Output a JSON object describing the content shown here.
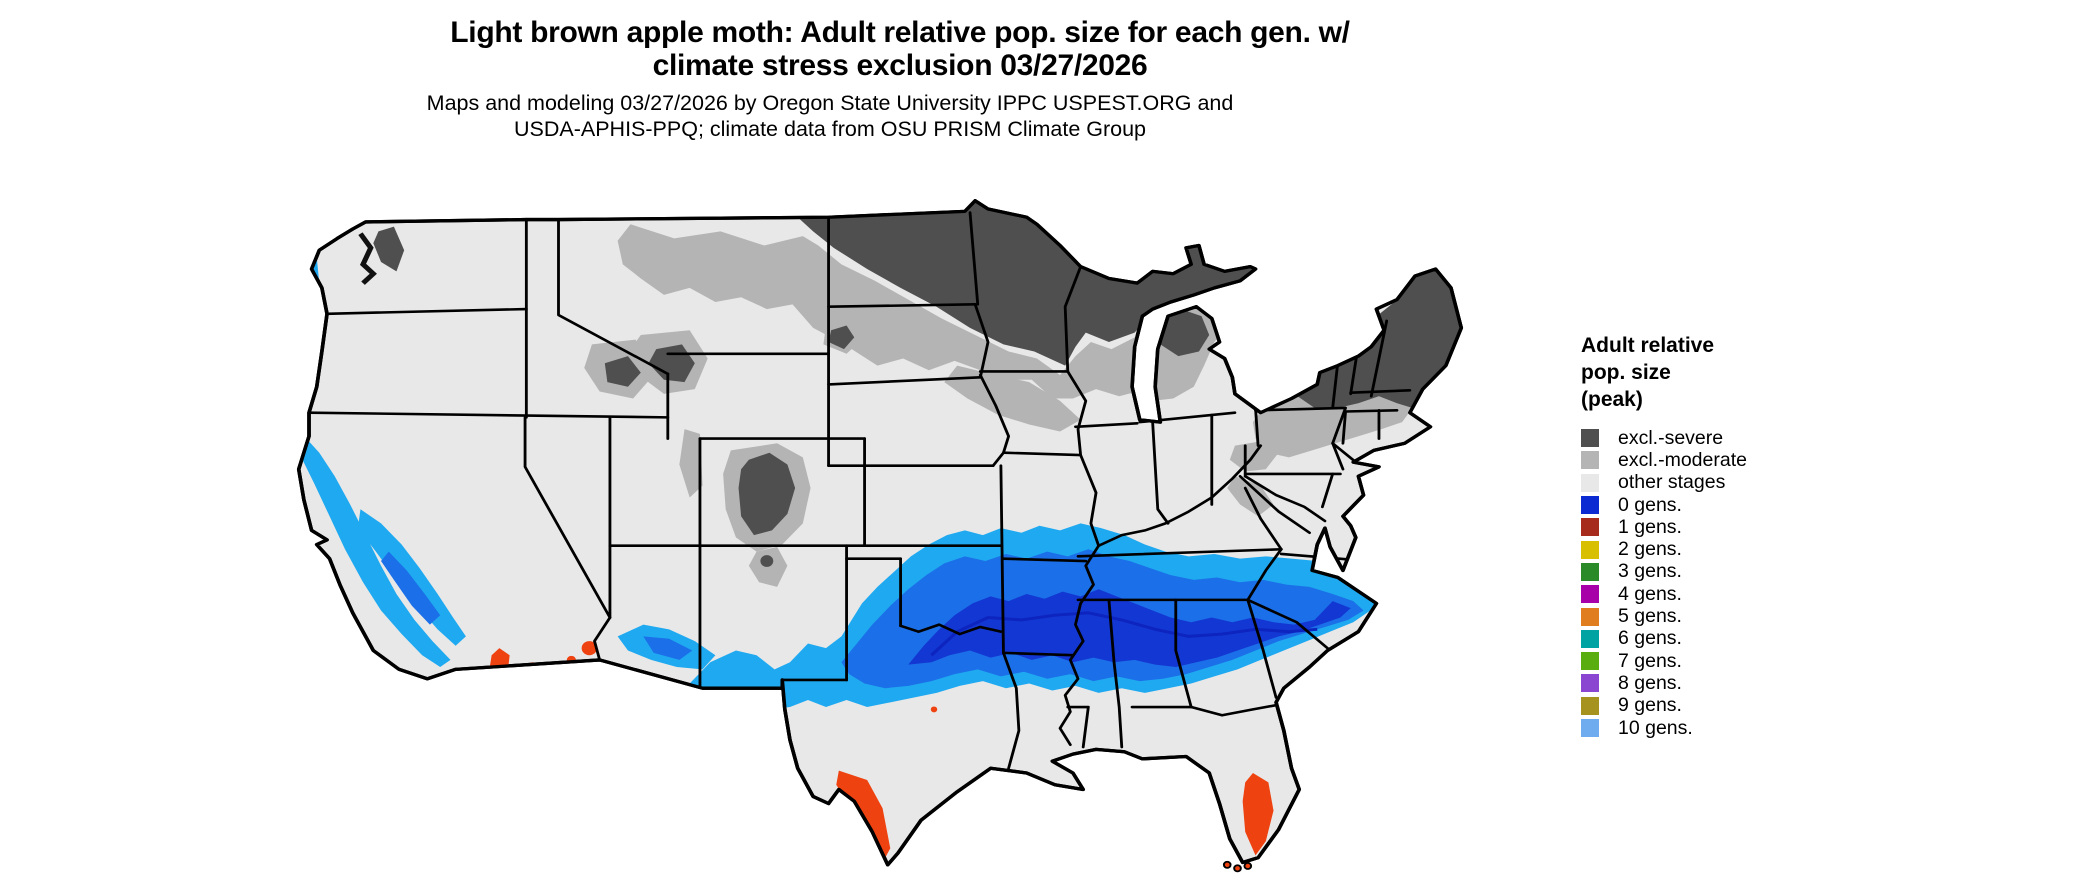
{
  "title": {
    "line1": "Light brown apple moth: Adult relative pop. size for each gen. w/",
    "line2": "climate stress exclusion 03/27/2026"
  },
  "subtitle": {
    "line1": "Maps and modeling 03/27/2026 by Oregon State University IPPC USPEST.ORG and",
    "line2": "USDA-APHIS-PPQ; climate data from OSU PRISM Climate Group"
  },
  "legend": {
    "title_lines": [
      "Adult relative",
      "pop. size",
      "(peak)"
    ],
    "items": [
      {
        "label": "excl.-severe",
        "color": "#4f4f4f"
      },
      {
        "label": "excl.-moderate",
        "color": "#b4b4b4"
      },
      {
        "label": "other stages",
        "color": "#e8e8e8"
      },
      {
        "label": "0 gens.",
        "color": "#0b2ad1"
      },
      {
        "label": "1 gens.",
        "color": "#a62b1c"
      },
      {
        "label": "2 gens.",
        "color": "#d8bf00"
      },
      {
        "label": "3 gens.",
        "color": "#2a8a28"
      },
      {
        "label": "4 gens.",
        "color": "#a800a8"
      },
      {
        "label": "5 gens.",
        "color": "#e07d1e"
      },
      {
        "label": "6 gens.",
        "color": "#00a2a2"
      },
      {
        "label": "7 gens.",
        "color": "#5aad0e"
      },
      {
        "label": "8 gens.",
        "color": "#8a46d0"
      },
      {
        "label": "9 gens.",
        "color": "#a6921f"
      },
      {
        "label": "10 gens.",
        "color": "#6fabef"
      }
    ]
  },
  "map": {
    "description": "Contiguous United States pest generations map",
    "palette": {
      "land": "#e8e8e8",
      "excl_severe": "#4f4f4f",
      "excl_moderate": "#b4b4b4",
      "blue_light": "#1fa9f0",
      "blue_med": "#1b6fe8",
      "blue_dark": "#1337d2",
      "blue_navy": "#0d24bf",
      "orange": "#ee4210",
      "border": "#000000"
    }
  }
}
